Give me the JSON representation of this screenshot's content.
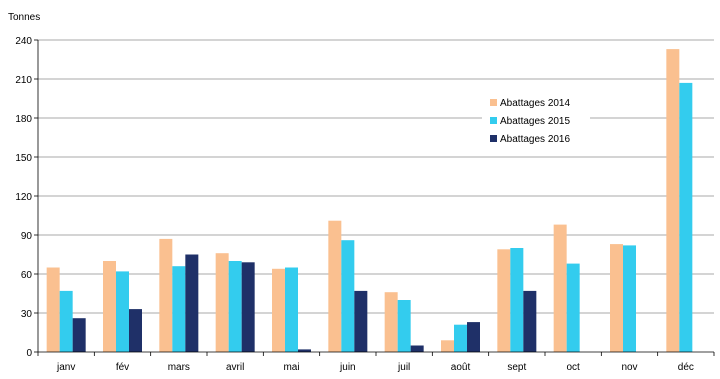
{
  "chart_data": {
    "type": "bar",
    "ylabel": "Tonnes",
    "xlabel": "",
    "title": "",
    "ylim": [
      0,
      240
    ],
    "yticks": [
      0,
      30,
      60,
      90,
      120,
      150,
      180,
      210,
      240
    ],
    "grid": "horizontal",
    "legend_position": "inside-right",
    "categories": [
      "janv",
      "fév",
      "mars",
      "avril",
      "mai",
      "juin",
      "juil",
      "août",
      "sept",
      "oct",
      "nov",
      "déc"
    ],
    "series": [
      {
        "name": "Abattages 2014",
        "color": "#FAC090",
        "values": [
          65,
          70,
          87,
          76,
          64,
          101,
          46,
          9,
          79,
          98,
          83,
          233
        ]
      },
      {
        "name": "Abattages 2015",
        "color": "#33CCEE",
        "values": [
          47,
          62,
          66,
          70,
          65,
          86,
          40,
          21,
          80,
          68,
          82,
          207
        ]
      },
      {
        "name": "Abattages 2016",
        "color": "#1F3068",
        "values": [
          26,
          33,
          75,
          69,
          2,
          47,
          5,
          23,
          47,
          0,
          0,
          0
        ]
      }
    ]
  }
}
